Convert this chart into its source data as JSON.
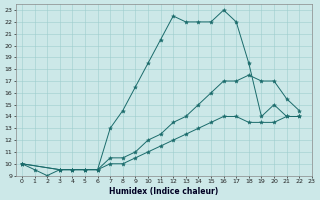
{
  "xlabel": "Humidex (Indice chaleur)",
  "background_color": "#cce8e8",
  "line_color": "#1a6b6b",
  "xlim": [
    -0.5,
    23
  ],
  "ylim": [
    9,
    23.5
  ],
  "xticks": [
    0,
    1,
    2,
    3,
    4,
    5,
    6,
    7,
    8,
    9,
    10,
    11,
    12,
    13,
    14,
    15,
    16,
    17,
    18,
    19,
    20,
    21,
    22,
    23
  ],
  "yticks": [
    9,
    10,
    11,
    12,
    13,
    14,
    15,
    16,
    17,
    18,
    19,
    20,
    21,
    22,
    23
  ],
  "line1_x": [
    0,
    1,
    2,
    3,
    4,
    5,
    6,
    7,
    8,
    9,
    10,
    11,
    12,
    13,
    14,
    15,
    16,
    17,
    18,
    19,
    20,
    21,
    22
  ],
  "line1_y": [
    10,
    9.5,
    9,
    9.5,
    9.5,
    9.5,
    9.5,
    13,
    14.5,
    16.5,
    18.5,
    20.5,
    22.5,
    22,
    22,
    22,
    23,
    22,
    18.5,
    14,
    15,
    14,
    14
  ],
  "line2_x": [
    0,
    3,
    4,
    5,
    6,
    7,
    8,
    9,
    10,
    11,
    12,
    13,
    14,
    15,
    16,
    17,
    18,
    19,
    20,
    21,
    22
  ],
  "line2_y": [
    10,
    9.5,
    9.5,
    9.5,
    9.5,
    10.5,
    10.5,
    11,
    12,
    12.5,
    13.5,
    14,
    15,
    16,
    17,
    17,
    17.5,
    17,
    17,
    15.5,
    14.5
  ],
  "line3_x": [
    0,
    3,
    4,
    5,
    6,
    7,
    8,
    9,
    10,
    11,
    12,
    13,
    14,
    15,
    16,
    17,
    18,
    19,
    20,
    21,
    22
  ],
  "line3_y": [
    10,
    9.5,
    9.5,
    9.5,
    9.5,
    10,
    10,
    10.5,
    11,
    11.5,
    12,
    12.5,
    13,
    13.5,
    14,
    14,
    13.5,
    13.5,
    13.5,
    14,
    14
  ]
}
